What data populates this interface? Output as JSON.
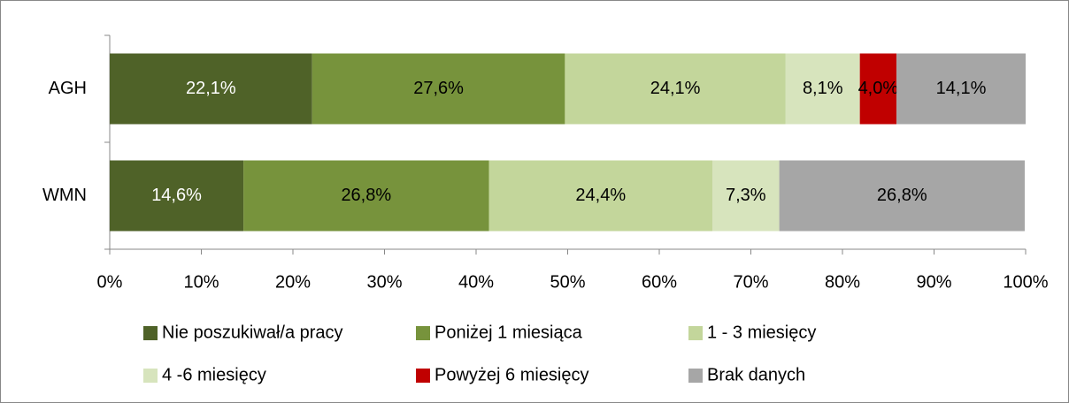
{
  "chart_data": {
    "type": "stacked-barh",
    "categories": [
      "AGH",
      "WMN"
    ],
    "series": [
      {
        "name": "Nie poszukiwał/a pracy",
        "color": "#4f6228",
        "label_color": "#ffffff",
        "values": [
          22.1,
          14.6
        ],
        "value_labels": [
          "22,1%",
          "14,6%"
        ]
      },
      {
        "name": "Poniżej 1 miesiąca",
        "color": "#77933c",
        "label_color": "#000000",
        "values": [
          27.6,
          26.8
        ],
        "value_labels": [
          "27,6%",
          "26,8%"
        ]
      },
      {
        "name": "1 - 3 miesięcy",
        "color": "#c3d69b",
        "label_color": "#000000",
        "values": [
          24.1,
          24.4
        ],
        "value_labels": [
          "24,1%",
          "24,4%"
        ]
      },
      {
        "name": "4 -6 miesięcy",
        "color": "#d7e4bd",
        "label_color": "#000000",
        "values": [
          8.1,
          7.3
        ],
        "value_labels": [
          "8,1%",
          "7,3%"
        ]
      },
      {
        "name": "Powyżej 6 miesięcy",
        "color": "#c00000",
        "label_color": "#000000",
        "values": [
          4.0,
          null
        ],
        "value_labels": [
          "4,0%",
          null
        ]
      },
      {
        "name": "Brak danych",
        "color": "#a6a6a6",
        "label_color": "#000000",
        "values": [
          14.1,
          26.8
        ],
        "value_labels": [
          "14,1%",
          "26,8%"
        ]
      }
    ],
    "xlim": [
      0,
      100
    ],
    "xticks": [
      {
        "value": 0,
        "label": "0%"
      },
      {
        "value": 10,
        "label": "10%"
      },
      {
        "value": 20,
        "label": "20%"
      },
      {
        "value": 30,
        "label": "30%"
      },
      {
        "value": 40,
        "label": "40%"
      },
      {
        "value": 50,
        "label": "50%"
      },
      {
        "value": 60,
        "label": "60%"
      },
      {
        "value": 70,
        "label": "70%"
      },
      {
        "value": 80,
        "label": "80%"
      },
      {
        "value": 90,
        "label": "90%"
      },
      {
        "value": 100,
        "label": "100%"
      }
    ],
    "legend": "bottom"
  }
}
